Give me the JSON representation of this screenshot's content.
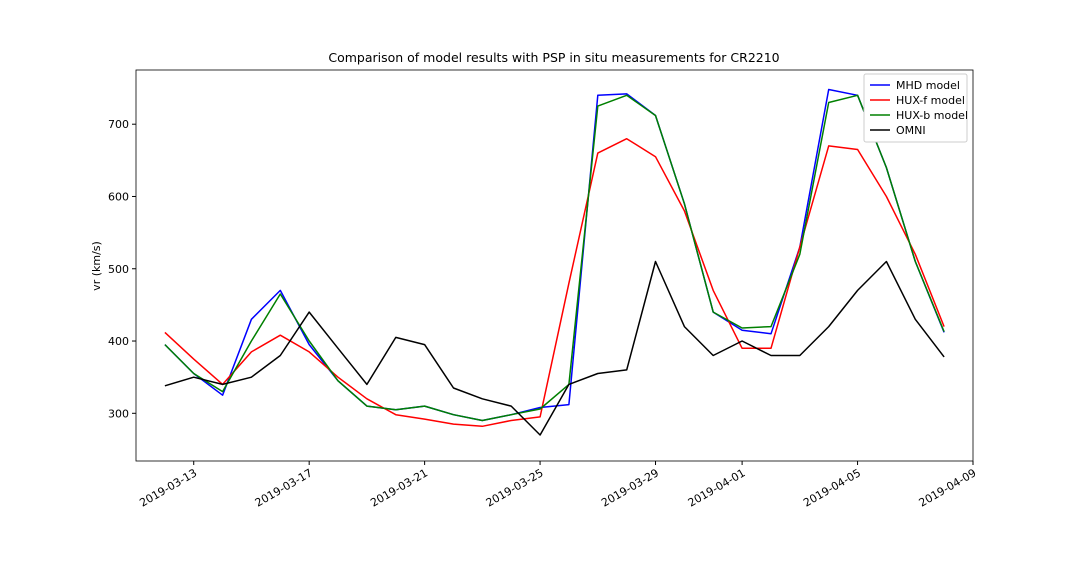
{
  "chart_data": {
    "type": "line",
    "title": "Comparison of model results with PSP in situ measurements for CR2210",
    "ylabel": "vr (km/s)",
    "x": [
      "2019-03-12",
      "2019-03-13",
      "2019-03-14",
      "2019-03-15",
      "2019-03-16",
      "2019-03-17",
      "2019-03-18",
      "2019-03-19",
      "2019-03-20",
      "2019-03-21",
      "2019-03-22",
      "2019-03-23",
      "2019-03-24",
      "2019-03-25",
      "2019-03-26",
      "2019-03-27",
      "2019-03-28",
      "2019-03-29",
      "2019-03-30",
      "2019-03-31",
      "2019-04-01",
      "2019-04-02",
      "2019-04-03",
      "2019-04-04",
      "2019-04-05",
      "2019-04-06",
      "2019-04-07",
      "2019-04-08"
    ],
    "series": [
      {
        "name": "MHD model",
        "color": "#0000ff",
        "values": [
          395,
          355,
          325,
          430,
          470,
          395,
          345,
          310,
          305,
          310,
          298,
          290,
          298,
          308,
          312,
          740,
          742,
          712,
          590,
          440,
          415,
          410,
          530,
          748,
          740,
          640,
          510,
          412
        ]
      },
      {
        "name": "HUX-f model",
        "color": "#ff0000",
        "values": [
          412,
          375,
          340,
          385,
          408,
          385,
          350,
          320,
          298,
          292,
          285,
          282,
          290,
          295,
          480,
          660,
          680,
          655,
          580,
          470,
          390,
          390,
          530,
          670,
          665,
          600,
          520,
          420
        ]
      },
      {
        "name": "HUX-b model",
        "color": "#008000",
        "values": [
          395,
          355,
          330,
          400,
          465,
          400,
          345,
          310,
          305,
          310,
          298,
          290,
          298,
          306,
          340,
          725,
          740,
          712,
          590,
          440,
          418,
          420,
          520,
          730,
          740,
          640,
          510,
          413
        ]
      },
      {
        "name": "OMNI",
        "color": "#000000",
        "values": [
          338,
          350,
          340,
          350,
          380,
          440,
          390,
          340,
          405,
          395,
          335,
          320,
          310,
          270,
          340,
          355,
          360,
          510,
          420,
          380,
          400,
          380,
          380,
          420,
          470,
          510,
          430,
          378
        ]
      }
    ],
    "xlim": [
      "2019-03-11",
      "2019-04-09"
    ],
    "xticks": [
      "2019-03-13",
      "2019-03-17",
      "2019-03-21",
      "2019-03-25",
      "2019-03-29",
      "2019-04-01",
      "2019-04-05",
      "2019-04-09"
    ],
    "ylim": [
      234,
      775
    ],
    "yticks": [
      300,
      400,
      500,
      600,
      700
    ],
    "legend": "upper right"
  }
}
